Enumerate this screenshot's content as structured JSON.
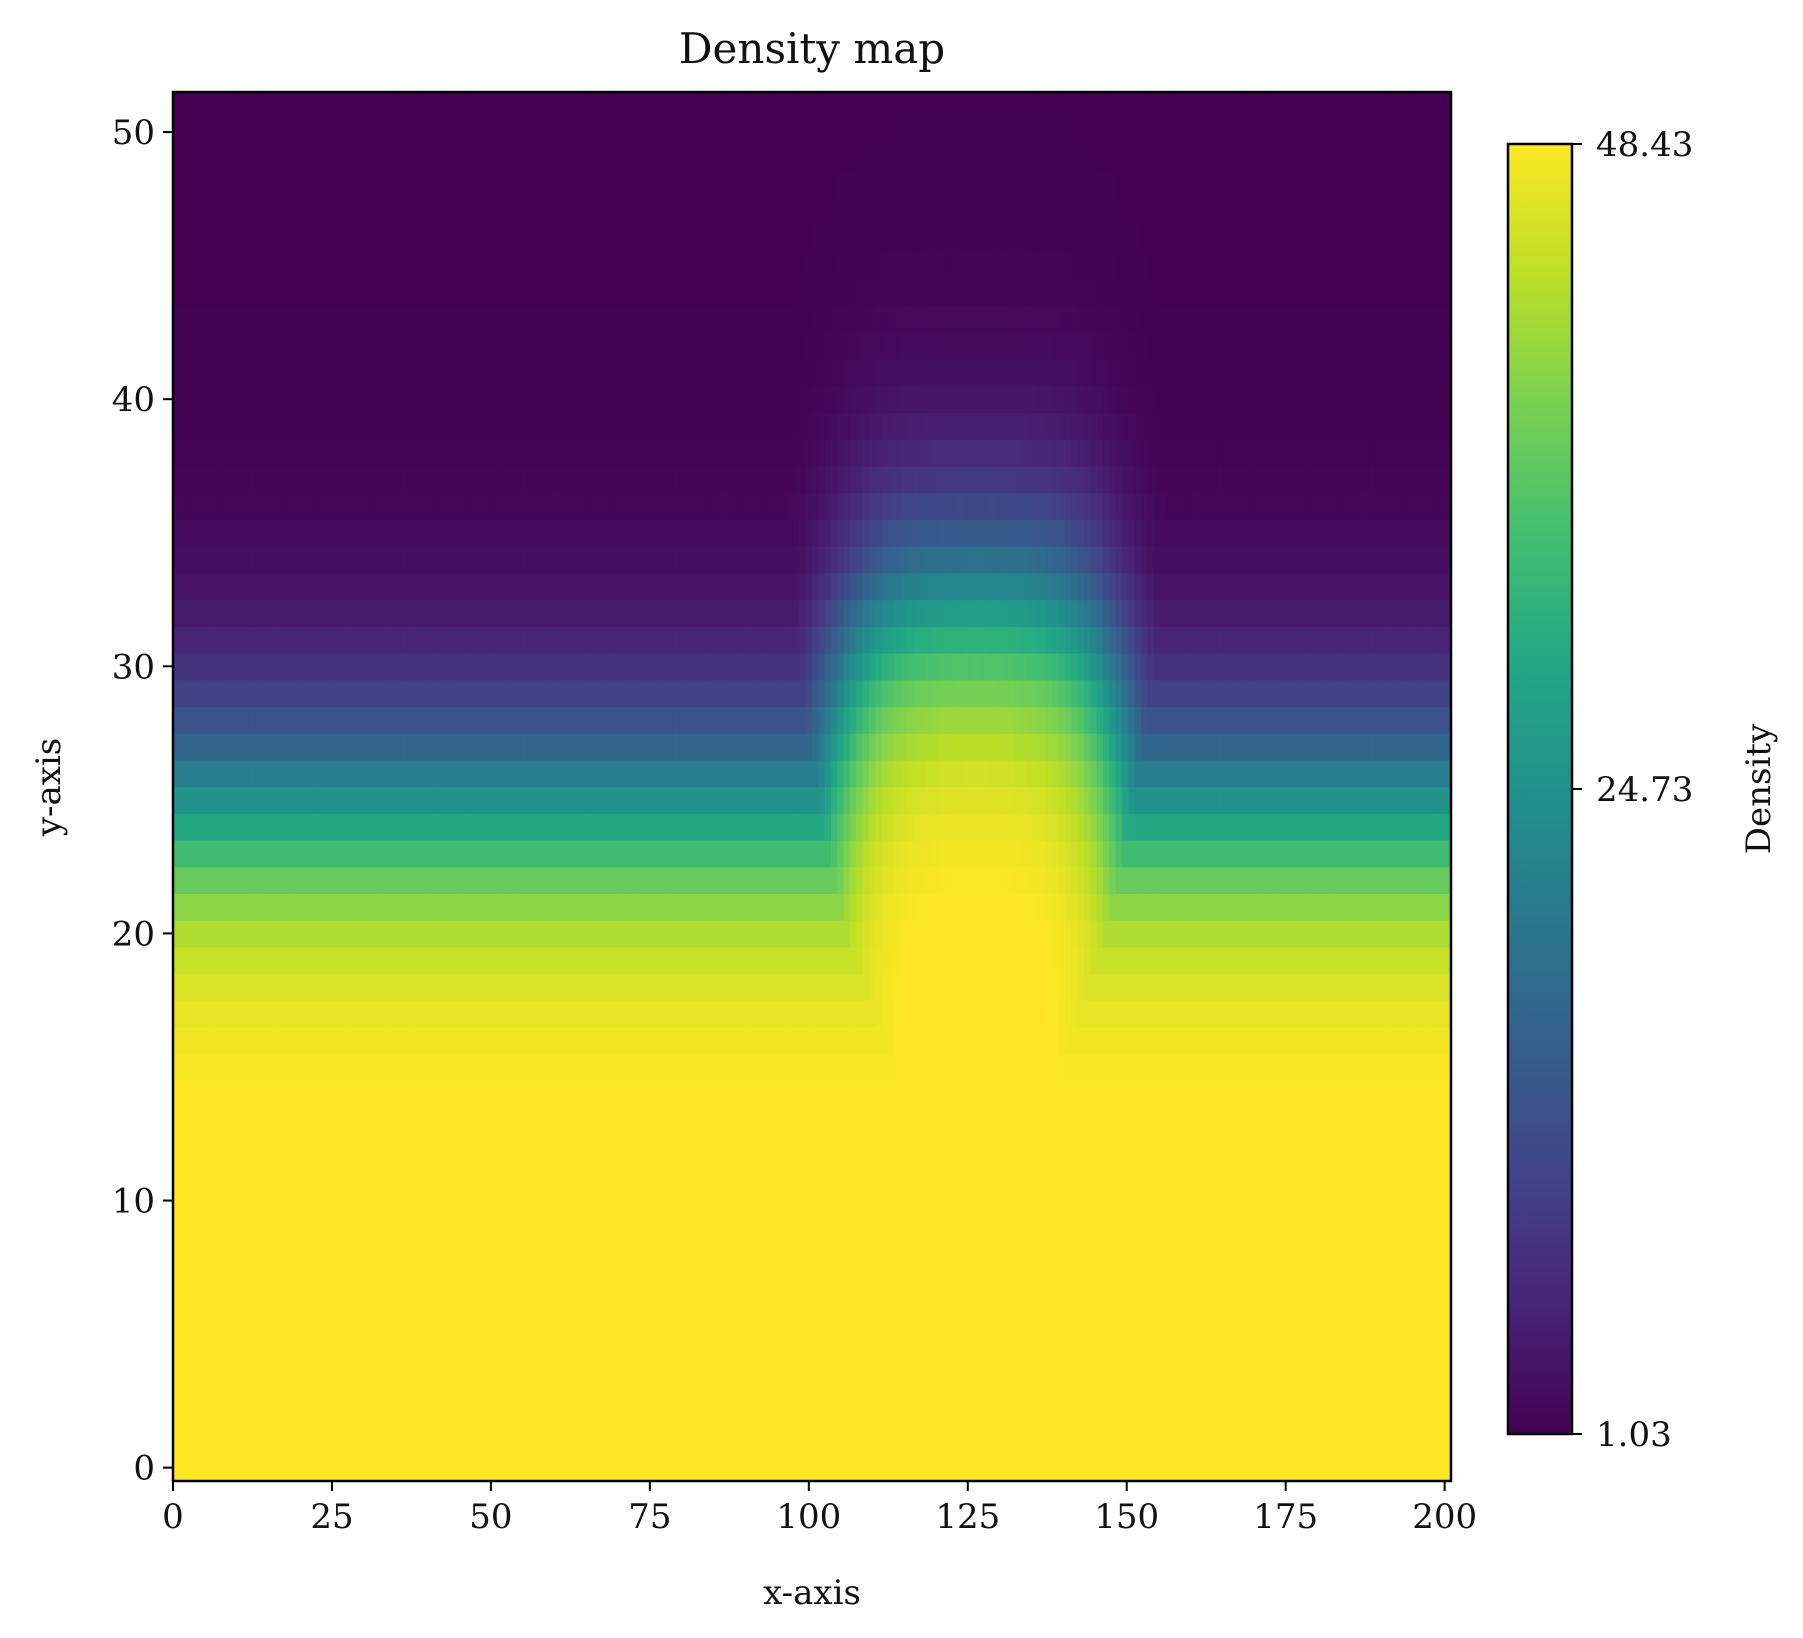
{
  "chart_data": {
    "type": "heatmap",
    "title": "Density map",
    "xlabel": "x-axis",
    "ylabel": "y-axis",
    "xlim": [
      0,
      201
    ],
    "ylim": [
      -0.5,
      51.5
    ],
    "x_ticks": [
      {
        "value": 0,
        "label": "0"
      },
      {
        "value": 25,
        "label": "25"
      },
      {
        "value": 50,
        "label": "50"
      },
      {
        "value": 75,
        "label": "75"
      },
      {
        "value": 100,
        "label": "100"
      },
      {
        "value": 125,
        "label": "125"
      },
      {
        "value": 150,
        "label": "150"
      },
      {
        "value": 175,
        "label": "175"
      },
      {
        "value": 200,
        "label": "200"
      }
    ],
    "y_ticks": [
      {
        "value": 0,
        "label": "0"
      },
      {
        "value": 10,
        "label": "10"
      },
      {
        "value": 20,
        "label": "20"
      },
      {
        "value": 30,
        "label": "30"
      },
      {
        "value": 40,
        "label": "40"
      },
      {
        "value": 50,
        "label": "50"
      }
    ],
    "colormap": "viridis",
    "colorbar": {
      "label": "Density",
      "min": 1.03,
      "max": 48.43,
      "ticks": [
        {
          "value": 1.03,
          "label": "1.03"
        },
        {
          "value": 24.73,
          "label": "24.73"
        },
        {
          "value": 48.43,
          "label": "48.43"
        }
      ]
    },
    "field": {
      "x_count": 202,
      "y_count": 52,
      "background_level": 20,
      "bump_center_x": 127,
      "bump_half_width_top": 20,
      "bump_half_width_bottom": 28,
      "bump_peak_level": 32,
      "transition_width": 5,
      "bump_edge_softness": 4
    },
    "grid": false,
    "legend": "none"
  }
}
